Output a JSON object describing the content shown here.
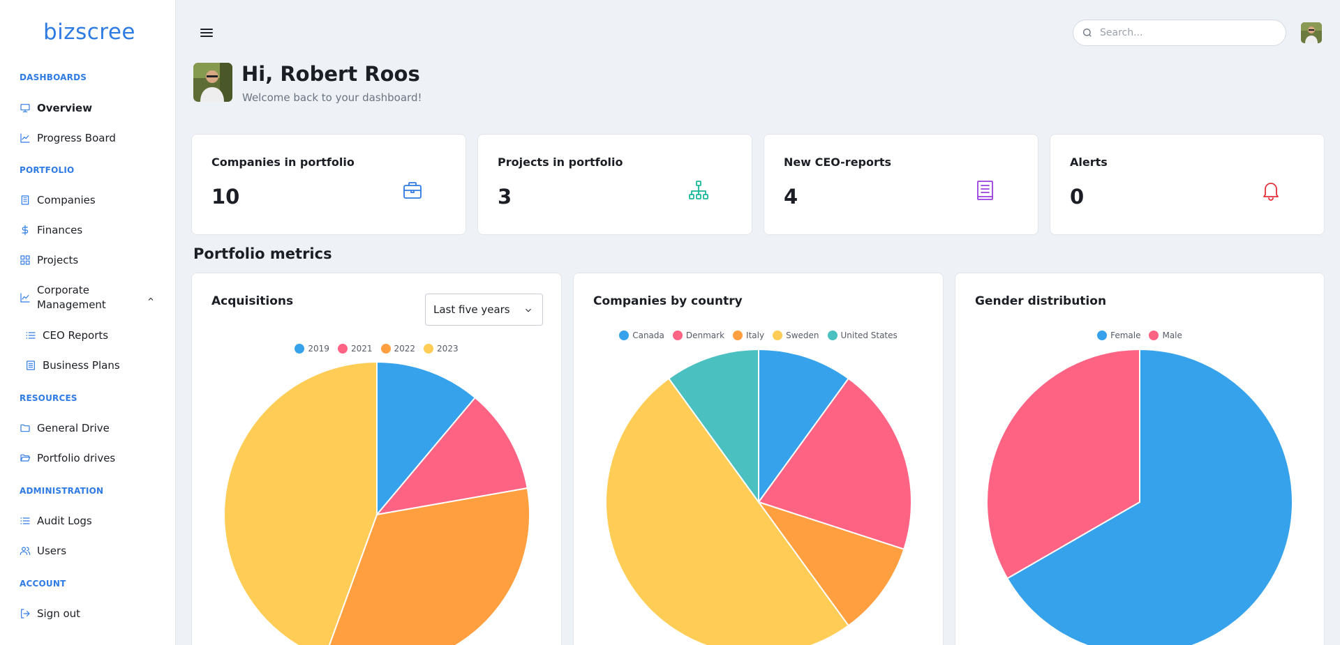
{
  "app": {
    "logo": "bizscree"
  },
  "sidebar": {
    "sections": [
      {
        "title": "DASHBOARDS",
        "items": [
          {
            "label": "Overview",
            "icon": "monitor-icon",
            "active": true
          },
          {
            "label": "Progress Board",
            "icon": "trend-chart-icon"
          }
        ]
      },
      {
        "title": "PORTFOLIO",
        "items": [
          {
            "label": "Companies",
            "icon": "building-icon"
          },
          {
            "label": "Finances",
            "icon": "dollar-icon"
          },
          {
            "label": "Projects",
            "icon": "grid-icon"
          },
          {
            "label": "Corporate Management",
            "icon": "trend-chart-icon",
            "expanded": true
          },
          {
            "label": "CEO Reports",
            "icon": "list-icon",
            "sub": true
          },
          {
            "label": "Business Plans",
            "icon": "document-icon",
            "sub": true
          }
        ]
      },
      {
        "title": "RESOURCES",
        "items": [
          {
            "label": "General Drive",
            "icon": "folder-icon"
          },
          {
            "label": "Portfolio drives",
            "icon": "folder-open-icon"
          }
        ]
      },
      {
        "title": "ADMINISTRATION",
        "items": [
          {
            "label": "Audit Logs",
            "icon": "list-icon"
          },
          {
            "label": "Users",
            "icon": "users-icon"
          }
        ]
      },
      {
        "title": "ACCOUNT",
        "items": [
          {
            "label": "Sign out",
            "icon": "sign-out-icon"
          }
        ]
      }
    ]
  },
  "header": {
    "search_placeholder": "Search..."
  },
  "greeting": {
    "title": "Hi, Robert Roos",
    "subtitle": "Welcome back to your dashboard!"
  },
  "stats": [
    {
      "title": "Companies in portfolio",
      "value": "10",
      "icon": "briefcase-icon",
      "color": "#2f7be4"
    },
    {
      "title": "Projects in portfolio",
      "value": "3",
      "icon": "sitemap-icon",
      "color": "#17b89a"
    },
    {
      "title": "New CEO-reports",
      "value": "4",
      "icon": "book-icon",
      "color": "#9b3fe0"
    },
    {
      "title": "Alerts",
      "value": "0",
      "icon": "bell-icon",
      "color": "#e5303a"
    }
  ],
  "metrics_title": "Portfolio metrics",
  "colors": {
    "blue": "#36a2eb",
    "pink": "#ff6384",
    "orange": "#ff9f40",
    "yellow": "#ffcd56",
    "teal": "#4bc0c0"
  },
  "chart_data": [
    {
      "type": "pie",
      "title": "Acquisitions",
      "filter": "Last five years",
      "categories": [
        "2019",
        "2021",
        "2022",
        "2023"
      ],
      "values": [
        1,
        1,
        3,
        4
      ],
      "colors": [
        "#36a2eb",
        "#ff6384",
        "#ff9f40",
        "#ffcd56"
      ]
    },
    {
      "type": "pie",
      "title": "Companies by country",
      "categories": [
        "Canada",
        "Denmark",
        "Italy",
        "Sweden",
        "United States"
      ],
      "values": [
        1,
        2,
        1,
        5,
        1
      ],
      "colors": [
        "#36a2eb",
        "#ff6384",
        "#ff9f40",
        "#ffcd56",
        "#4bc0c0"
      ]
    },
    {
      "type": "pie",
      "title": "Gender distribution",
      "categories": [
        "Female",
        "Male"
      ],
      "values": [
        2,
        1
      ],
      "colors": [
        "#36a2eb",
        "#ff6384"
      ]
    }
  ]
}
